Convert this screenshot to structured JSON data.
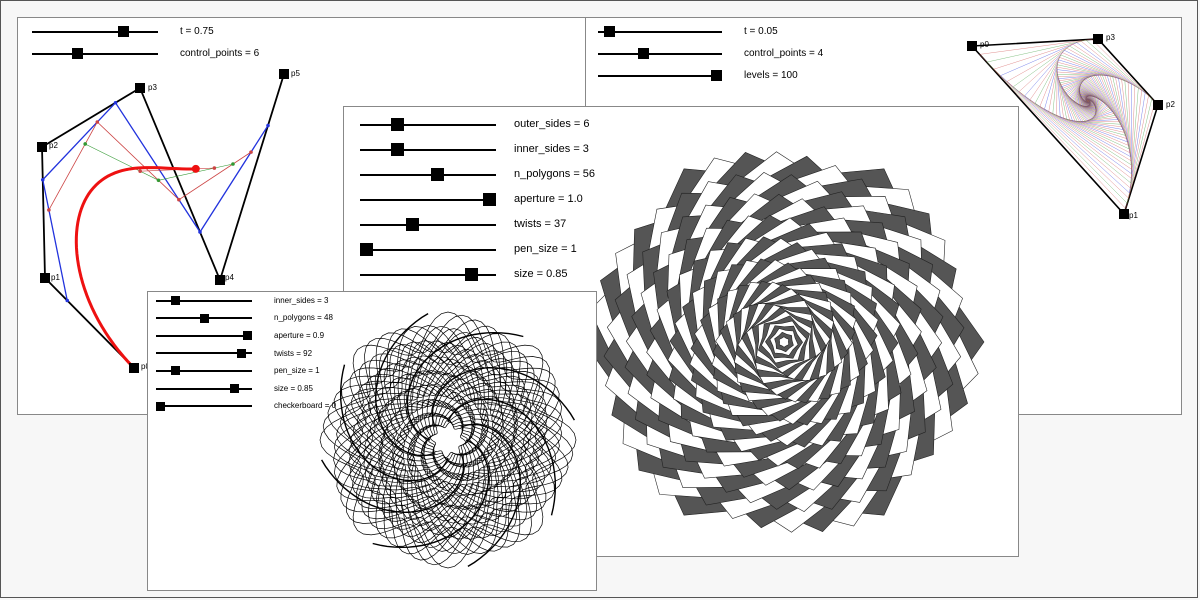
{
  "bezier": {
    "sliders": [
      {
        "label": "t = 0.75",
        "value": 0.75
      },
      {
        "label": "control_points = 6",
        "value": 0.35
      }
    ],
    "points": [
      "p0",
      "p1",
      "p2",
      "p3",
      "p4",
      "p5"
    ]
  },
  "spiral": {
    "sliders": [
      {
        "label": "t = 0.05",
        "value": 0.05
      },
      {
        "label": "control_points = 4",
        "value": 0.35
      },
      {
        "label": "levels = 100",
        "value": 1.0
      }
    ],
    "points": [
      "p0",
      "p1",
      "p2",
      "p3"
    ]
  },
  "star": {
    "sliders": [
      {
        "label": "outer_sides = 6",
        "value": 0.25
      },
      {
        "label": "inner_sides = 3",
        "value": 0.25
      },
      {
        "label": "n_polygons = 56",
        "value": 0.58
      },
      {
        "label": "aperture = 1.0",
        "value": 1.0
      },
      {
        "label": "twists = 37",
        "value": 0.37
      },
      {
        "label": "pen_size = 1",
        "value": 0.0
      },
      {
        "label": "size = 0.85",
        "value": 0.85
      }
    ]
  },
  "flower": {
    "sliders": [
      {
        "label": "inner_sides = 3",
        "value": 0.17
      },
      {
        "label": "n_polygons = 48",
        "value": 0.5
      },
      {
        "label": "aperture = 0.9",
        "value": 1.0
      },
      {
        "label": "twists = 92",
        "value": 0.93
      },
      {
        "label": "pen_size = 1",
        "value": 0.17
      },
      {
        "label": "size = 0.85",
        "value": 0.85
      },
      {
        "label": "checkerboard = 0",
        "value": 0.0
      }
    ]
  },
  "colors": {
    "curve": "#ee1111",
    "blue": "#2233dd",
    "red_level": "#cc4444",
    "green_level": "#339933"
  }
}
